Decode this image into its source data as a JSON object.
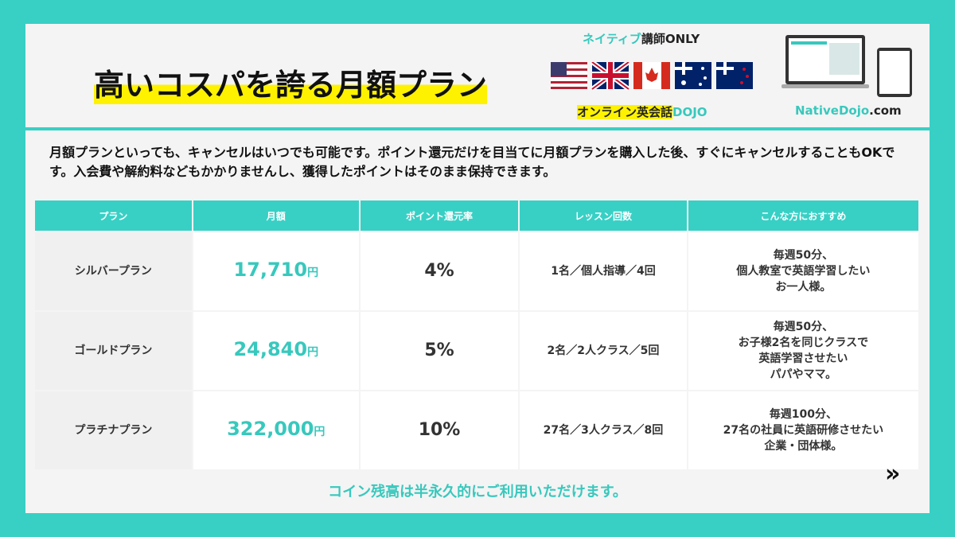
{
  "header": {
    "title": "高いコスパを誇る月額プラン",
    "badge": [
      "ネイティブ",
      "講師ONLY"
    ],
    "brand": [
      "オンライン英会話",
      "DOJO"
    ],
    "site": [
      "NativeDojo",
      ".com"
    ]
  },
  "intro": "月額プランといっても、キャンセルはいつでも可能です。ポイント還元だけを目当てに月額プランを購入した後、すぐにキャンセルすることもOKです。入会費や解約料などもかかりませんし、獲得したポイントはそのまま保持できます。",
  "table": {
    "headers": [
      "プラン",
      "月額",
      "ポイント還元率",
      "レッスン回数",
      "こんな方におすすめ"
    ],
    "rows": [
      {
        "plan": "シルバープラン",
        "price": "17,710",
        "unit": "円",
        "rate": "4%",
        "lessons": "1名／個人指導／4回",
        "recommend": [
          "毎週50分、",
          "個人教室で英語学習したい",
          "お一人様。"
        ]
      },
      {
        "plan": "ゴールドプラン",
        "price": "24,840",
        "unit": "円",
        "rate": "5%",
        "lessons": "2名／2人クラス／5回",
        "recommend": [
          "毎週50分、",
          "お子様2名を同じクラスで",
          "英語学習させたい",
          "パパやママ。"
        ]
      },
      {
        "plan": "プラチナプラン",
        "price": "322,000",
        "unit": "円",
        "rate": "10%",
        "lessons": "27名／3人クラス／8回",
        "recommend": [
          "毎週100分、",
          "27名の社員に英語研修させたい",
          "企業・団体様。"
        ]
      }
    ]
  },
  "footer": "コイン残高は半永久的にご利用いただけます。"
}
